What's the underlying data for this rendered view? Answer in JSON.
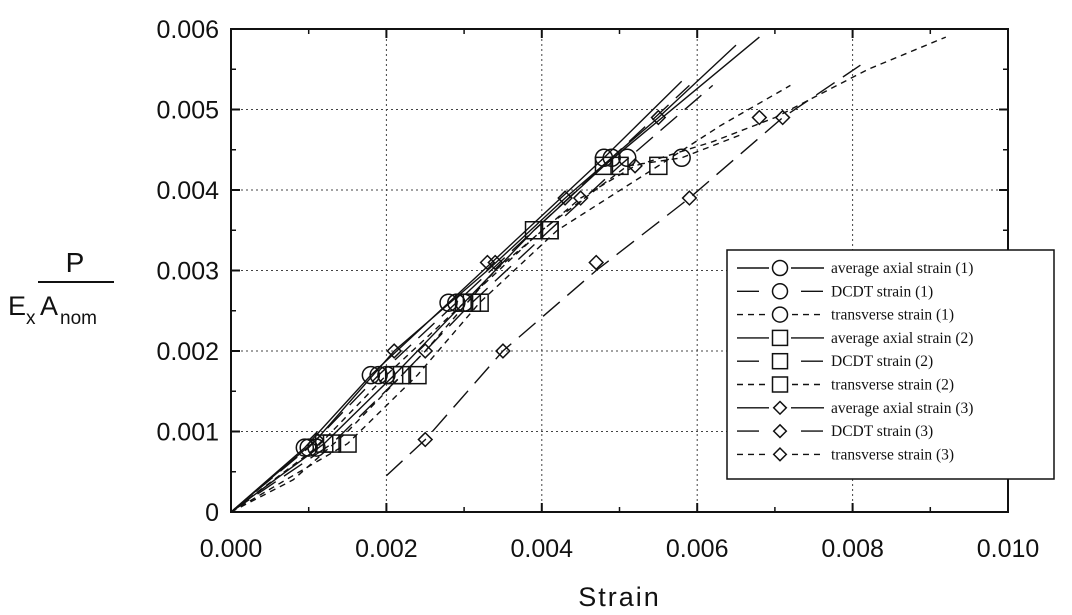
{
  "chart_data": {
    "type": "line",
    "title": "",
    "xlabel": "Strain",
    "ylabel": {
      "numerator": "P",
      "denominator_main_1": "E",
      "denominator_sub_1": "x",
      "denominator_main_2": "A",
      "denominator_sub_2": "nom"
    },
    "xlim": [
      0.0,
      0.01
    ],
    "ylim": [
      0.0,
      0.006
    ],
    "x_ticks": [
      "0.000",
      "0.002",
      "0.004",
      "0.006",
      "0.008",
      "0.010"
    ],
    "y_ticks": [
      "0",
      "0.001",
      "0.002",
      "0.003",
      "0.004",
      "0.005",
      "0.006"
    ],
    "grid": true,
    "legend_position": "right",
    "series": [
      {
        "name": "average axial strain (1)",
        "marker": "circle",
        "linestyle": "solid",
        "x": [
          0.0,
          0.00095,
          0.0018,
          0.0028,
          0.0038,
          0.0048,
          0.0058
        ],
        "y": [
          0.0,
          0.0008,
          0.0017,
          0.0026,
          0.0035,
          0.0044,
          0.00535
        ],
        "marker_x": [
          0.00095,
          0.0018,
          0.0028,
          0.0048
        ],
        "marker_y": [
          0.0008,
          0.0017,
          0.0026,
          0.0044
        ]
      },
      {
        "name": "DCDT strain (1)",
        "marker": "circle",
        "linestyle": "longdash",
        "x": [
          0.0,
          0.001,
          0.0019,
          0.0029,
          0.0039,
          0.0049,
          0.0059
        ],
        "y": [
          0.0,
          0.0008,
          0.0017,
          0.0026,
          0.0035,
          0.0044,
          0.0053
        ],
        "marker_x": [
          0.001,
          0.0019,
          0.0029,
          0.0049
        ],
        "marker_y": [
          0.0008,
          0.0017,
          0.0026,
          0.0044
        ]
      },
      {
        "name": "transverse strain (1)",
        "marker": "circle",
        "linestyle": "shortdash",
        "x": [
          0.0,
          0.0011,
          0.002,
          0.003,
          0.004,
          0.0051,
          0.0058,
          0.0066
        ],
        "y": [
          0.0,
          0.0008,
          0.0017,
          0.0026,
          0.0035,
          0.0043,
          0.0044,
          0.0047
        ],
        "marker_x": [
          0.0011,
          0.002,
          0.003,
          0.0051,
          0.0058
        ],
        "marker_y": [
          0.0008,
          0.0017,
          0.0026,
          0.0044,
          0.0044
        ]
      },
      {
        "name": "average axial strain (2)",
        "marker": "square",
        "linestyle": "solid",
        "x": [
          0.0,
          0.0012,
          0.0021,
          0.003,
          0.0039,
          0.0048,
          0.0058,
          0.0068
        ],
        "y": [
          0.0,
          0.00085,
          0.0017,
          0.0026,
          0.0035,
          0.0043,
          0.0051,
          0.0059
        ],
        "marker_x": [
          0.0012,
          0.0021,
          0.003,
          0.0039,
          0.0048
        ],
        "marker_y": [
          0.00085,
          0.0017,
          0.0026,
          0.0035,
          0.0043
        ]
      },
      {
        "name": "DCDT strain (2)",
        "marker": "square",
        "linestyle": "longdash",
        "x": [
          0.0,
          0.0013,
          0.0022,
          0.0031,
          0.0041,
          0.005,
          0.0062
        ],
        "y": [
          0.0,
          0.00085,
          0.0017,
          0.0026,
          0.0035,
          0.0043,
          0.0053
        ],
        "marker_x": [
          0.0013,
          0.0022,
          0.0031,
          0.0041,
          0.005
        ],
        "marker_y": [
          0.00085,
          0.0017,
          0.0026,
          0.0035,
          0.0043
        ]
      },
      {
        "name": "transverse strain (2)",
        "marker": "square",
        "linestyle": "shortdash",
        "x": [
          0.0,
          0.0015,
          0.0024,
          0.0032,
          0.0042,
          0.0055,
          0.0063,
          0.0072
        ],
        "y": [
          0.0,
          0.00085,
          0.0017,
          0.0026,
          0.0035,
          0.0043,
          0.0048,
          0.0053
        ],
        "marker_x": [
          0.0015,
          0.0024,
          0.0032,
          0.0041,
          0.0055
        ],
        "marker_y": [
          0.00085,
          0.0017,
          0.0026,
          0.0035,
          0.0043
        ]
      },
      {
        "name": "average axial strain (3)",
        "marker": "diamond",
        "linestyle": "solid",
        "x": [
          0.0,
          0.0011,
          0.0021,
          0.0033,
          0.0043,
          0.0055,
          0.0065
        ],
        "y": [
          0.0,
          0.0009,
          0.002,
          0.003,
          0.0039,
          0.0049,
          0.0058
        ],
        "marker_x": [
          0.0011,
          0.0021,
          0.0033,
          0.0043,
          0.0055
        ],
        "marker_y": [
          0.0009,
          0.002,
          0.0031,
          0.0039,
          0.0049
        ]
      },
      {
        "name": "DCDT strain (3)",
        "marker": "diamond",
        "linestyle": "longdash",
        "x": [
          0.002,
          0.0025,
          0.0035,
          0.0047,
          0.0059,
          0.0071,
          0.0081
        ],
        "y": [
          0.00045,
          0.0009,
          0.002,
          0.003,
          0.0039,
          0.0049,
          0.00555
        ],
        "marker_x": [
          0.0025,
          0.0035,
          0.0047,
          0.0059,
          0.0071
        ],
        "marker_y": [
          0.0009,
          0.002,
          0.0031,
          0.0039,
          0.0049
        ]
      },
      {
        "name": "transverse strain (3)",
        "marker": "diamond",
        "linestyle": "shortdash",
        "x": [
          0.0,
          0.0008,
          0.0015,
          0.0025,
          0.0034,
          0.0045,
          0.0052,
          0.0062,
          0.007,
          0.0082,
          0.0092
        ],
        "y": [
          0.0,
          0.0004,
          0.001,
          0.002,
          0.003,
          0.0039,
          0.0043,
          0.0046,
          0.0049,
          0.0055,
          0.0059
        ],
        "marker_x": [
          0.0025,
          0.0034,
          0.0045,
          0.0052,
          0.0068
        ],
        "marker_y": [
          0.002,
          0.0031,
          0.0039,
          0.0043,
          0.0049
        ]
      }
    ]
  }
}
